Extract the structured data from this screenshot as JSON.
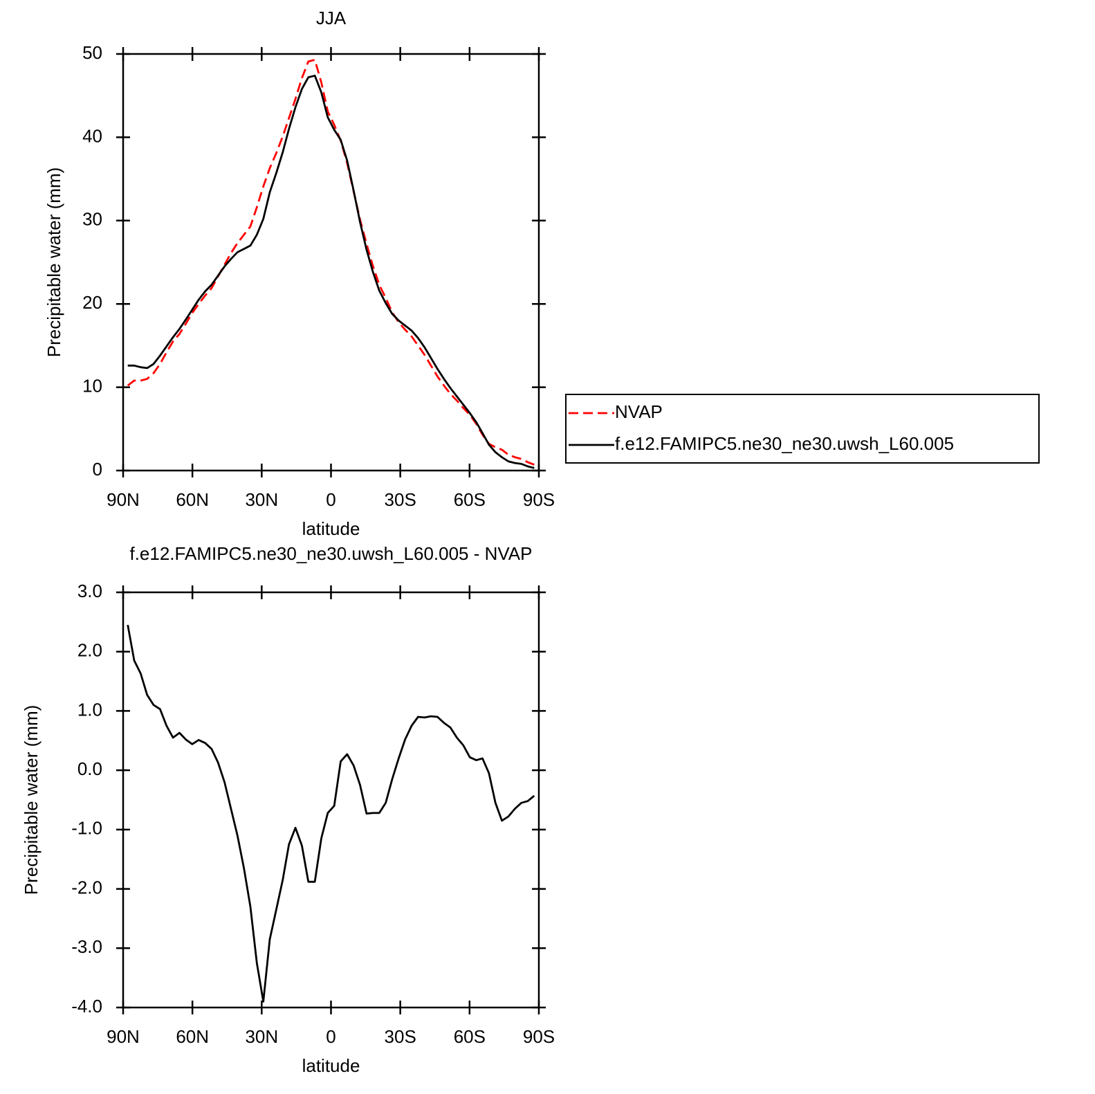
{
  "chart_data": [
    {
      "type": "line",
      "title": "JJA",
      "xlabel": "latitude",
      "ylabel": "Precipitable water (mm)",
      "x": [
        88.0,
        85.2,
        82.4,
        79.6,
        76.8,
        74.0,
        71.2,
        68.4,
        65.6,
        62.9,
        60.1,
        57.3,
        54.5,
        51.7,
        48.9,
        46.1,
        43.3,
        40.5,
        37.7,
        34.9,
        32.1,
        29.3,
        26.5,
        23.7,
        20.9,
        18.2,
        15.4,
        12.6,
        9.8,
        7.0,
        4.2,
        1.4,
        -1.4,
        -4.2,
        -7.0,
        -9.8,
        -12.6,
        -15.4,
        -18.2,
        -20.9,
        -23.7,
        -26.5,
        -29.3,
        -32.1,
        -34.9,
        -37.7,
        -40.5,
        -43.3,
        -46.1,
        -48.9,
        -51.7,
        -54.5,
        -57.3,
        -60.1,
        -62.9,
        -65.6,
        -68.4,
        -71.2,
        -74.0,
        -76.8,
        -79.6,
        -82.4,
        -85.2,
        -88.0
      ],
      "series": [
        {
          "name": "NVAP",
          "color": "#ff0000",
          "line_style": "dashed",
          "values": [
            10.2,
            10.8,
            10.8,
            11.0,
            11.7,
            12.8,
            14.2,
            15.5,
            16.4,
            17.6,
            18.9,
            20.0,
            21.0,
            21.9,
            23.3,
            24.7,
            26.1,
            27.3,
            28.3,
            29.3,
            31.6,
            34.1,
            36.3,
            38.1,
            40.1,
            42.3,
            44.6,
            47.1,
            49.1,
            49.3,
            46.6,
            43.1,
            41.5,
            39.6,
            36.9,
            33.5,
            30.1,
            27.2,
            24.5,
            22.3,
            20.7,
            19.0,
            17.8,
            16.9,
            16.1,
            15.0,
            13.9,
            12.6,
            11.3,
            10.2,
            9.2,
            8.4,
            7.5,
            6.7,
            5.6,
            4.3,
            3.2,
            2.8,
            2.5,
            1.9,
            1.6,
            1.4,
            1.0,
            0.7
          ]
        },
        {
          "name": "f.e12.FAMIPC5.ne30_ne30.uwsh_L60.005",
          "color": "#000000",
          "line_style": "solid",
          "values": [
            12.6,
            12.6,
            12.4,
            12.3,
            12.8,
            13.8,
            14.9,
            16.0,
            17.0,
            18.1,
            19.3,
            20.5,
            21.5,
            22.3,
            23.4,
            24.5,
            25.4,
            26.2,
            26.6,
            27.0,
            28.3,
            30.2,
            33.4,
            35.7,
            38.2,
            41.0,
            43.6,
            45.8,
            47.2,
            47.4,
            45.4,
            42.4,
            40.9,
            39.7,
            37.2,
            33.6,
            29.8,
            26.5,
            23.8,
            21.6,
            20.1,
            18.8,
            18.0,
            17.4,
            16.8,
            15.9,
            14.8,
            13.5,
            12.2,
            11.0,
            9.9,
            8.9,
            7.9,
            6.9,
            5.8,
            4.5,
            3.1,
            2.2,
            1.6,
            1.1,
            0.9,
            0.8,
            0.5,
            0.3
          ]
        }
      ],
      "xlim": [
        90,
        -90
      ],
      "xticks": [
        {
          "value": 90,
          "label": "90N"
        },
        {
          "value": 60,
          "label": "60N"
        },
        {
          "value": 30,
          "label": "30N"
        },
        0,
        {
          "value": -30,
          "label": "30S"
        },
        {
          "value": -60,
          "label": "60S"
        },
        {
          "value": -90,
          "label": "90S"
        }
      ],
      "ylim": [
        0,
        50
      ],
      "yticks": [
        0,
        10,
        20,
        30,
        40,
        50
      ],
      "legend": "right"
    },
    {
      "type": "line",
      "title": "f.e12.FAMIPC5.ne30_ne30.uwsh_L60.005 - NVAP",
      "xlabel": "latitude",
      "ylabel": "Precipitable water (mm)",
      "x": [
        88.0,
        85.2,
        82.4,
        79.6,
        76.8,
        74.0,
        71.2,
        68.4,
        65.6,
        62.9,
        60.1,
        57.3,
        54.5,
        51.7,
        48.9,
        46.1,
        43.3,
        40.5,
        37.7,
        34.9,
        32.1,
        29.3,
        26.5,
        23.7,
        20.9,
        18.2,
        15.4,
        12.6,
        9.8,
        7.0,
        4.2,
        1.4,
        -1.4,
        -4.2,
        -7.0,
        -9.8,
        -12.6,
        -15.4,
        -18.2,
        -20.9,
        -23.7,
        -26.5,
        -29.3,
        -32.1,
        -34.9,
        -37.7,
        -40.5,
        -43.3,
        -46.1,
        -48.9,
        -51.7,
        -54.5,
        -57.3,
        -60.1,
        -62.9,
        -65.6,
        -68.4,
        -71.2,
        -74.0,
        -76.8,
        -79.6,
        -82.4,
        -85.2,
        -88.0
      ],
      "values": [
        2.45,
        1.85,
        1.63,
        1.27,
        1.1,
        1.03,
        0.75,
        0.55,
        0.63,
        0.52,
        0.44,
        0.51,
        0.46,
        0.36,
        0.13,
        -0.2,
        -0.65,
        -1.1,
        -1.65,
        -2.3,
        -3.25,
        -3.9,
        -2.85,
        -2.35,
        -1.85,
        -1.25,
        -0.97,
        -1.27,
        -1.88,
        -1.88,
        -1.15,
        -0.72,
        -0.6,
        0.15,
        0.27,
        0.08,
        -0.25,
        -0.73,
        -0.72,
        -0.72,
        -0.55,
        -0.15,
        0.2,
        0.52,
        0.75,
        0.9,
        0.89,
        0.91,
        0.9,
        0.8,
        0.72,
        0.55,
        0.42,
        0.22,
        0.17,
        0.2,
        -0.05,
        -0.55,
        -0.85,
        -0.78,
        -0.65,
        -0.55,
        -0.52,
        -0.43
      ],
      "color": "#000000",
      "xlim": [
        90,
        -90
      ],
      "xticks": [
        {
          "value": 90,
          "label": "90N"
        },
        {
          "value": 60,
          "label": "60N"
        },
        {
          "value": 30,
          "label": "30N"
        },
        0,
        {
          "value": -30,
          "label": "30S"
        },
        {
          "value": -60,
          "label": "60S"
        },
        {
          "value": -90,
          "label": "90S"
        }
      ],
      "ylim": [
        -4,
        3
      ],
      "yticks": [
        {
          "value": -4,
          "label": "-4.0"
        },
        {
          "value": -3,
          "label": "-3.0"
        },
        {
          "value": -2,
          "label": "-2.0"
        },
        {
          "value": -1,
          "label": "-1.0"
        },
        {
          "value": 0,
          "label": "0.0"
        },
        {
          "value": 1,
          "label": "1.0"
        },
        {
          "value": 2,
          "label": "2.0"
        },
        {
          "value": 3,
          "label": "3.0"
        }
      ]
    }
  ]
}
